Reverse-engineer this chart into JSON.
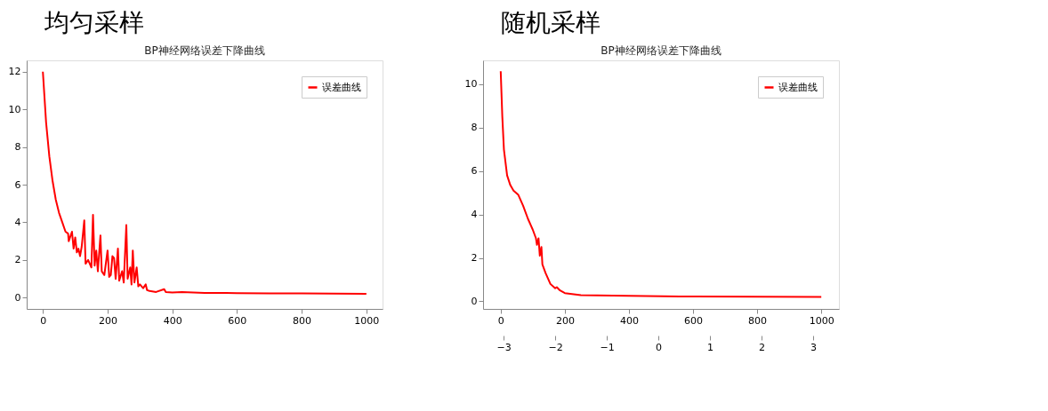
{
  "chart_data": [
    {
      "type": "line",
      "title": "BP神经网络误差下降曲线",
      "annotations": [
        "均匀采样"
      ],
      "xlim": [
        -50,
        1050
      ],
      "xticks": [
        0,
        200,
        400,
        600,
        800,
        1000
      ],
      "ylim": [
        -0.6,
        12.6
      ],
      "yticks": [
        0,
        2,
        4,
        6,
        8,
        10,
        12
      ],
      "grid": false,
      "legend": "top right",
      "marker": "none",
      "line_style": "solid",
      "x": [
        0,
        10,
        20,
        30,
        40,
        50,
        60,
        70,
        78,
        80,
        90,
        95,
        100,
        105,
        110,
        115,
        120,
        128,
        132,
        140,
        150,
        155,
        160,
        165,
        170,
        178,
        182,
        190,
        200,
        205,
        210,
        215,
        220,
        225,
        232,
        236,
        245,
        250,
        258,
        262,
        270,
        274,
        278,
        283,
        290,
        295,
        300,
        310,
        318,
        322,
        330,
        350,
        375,
        380,
        400,
        430,
        500,
        600,
        700,
        800,
        900,
        1000
      ],
      "series": [
        {
          "name": "误差曲线",
          "color": "#ff0000",
          "values": [
            12,
            9.3,
            7.5,
            6.2,
            5.2,
            4.5,
            4.0,
            3.5,
            3.4,
            3.0,
            3.5,
            2.6,
            3.2,
            2.4,
            2.6,
            2.2,
            2.7,
            4.1,
            1.8,
            2.0,
            1.6,
            4.4,
            1.7,
            2.5,
            1.4,
            3.3,
            1.4,
            1.2,
            2.5,
            1.1,
            1.2,
            2.2,
            2.1,
            1.0,
            2.6,
            0.9,
            1.4,
            0.8,
            3.85,
            1.0,
            1.6,
            0.7,
            2.5,
            0.8,
            1.6,
            0.6,
            0.7,
            0.5,
            0.7,
            0.4,
            0.35,
            0.3,
            0.45,
            0.3,
            0.27,
            0.3,
            0.25,
            0.24,
            0.23,
            0.22,
            0.21,
            0.2
          ]
        }
      ]
    },
    {
      "type": "line",
      "title": "BP神经网络误差下降曲线",
      "annotations": [
        "随机采样"
      ],
      "xlim": [
        -55,
        1055
      ],
      "xticks": [
        0,
        200,
        400,
        600,
        800,
        1000
      ],
      "ylim": [
        -0.35,
        11.1
      ],
      "yticks": [
        0,
        2,
        4,
        6,
        8,
        10
      ],
      "x2lim": [
        -3.4,
        3.5
      ],
      "x2ticks": [
        -3,
        -2,
        -1,
        0,
        1,
        2,
        3
      ],
      "grid": false,
      "legend": "top right",
      "marker": "none",
      "line_style": "solid",
      "x": [
        0,
        5,
        10,
        20,
        30,
        40,
        55,
        70,
        85,
        100,
        110,
        113,
        118,
        122,
        127,
        130,
        140,
        155,
        170,
        175,
        185,
        200,
        250,
        400,
        600,
        800,
        1000
      ],
      "series": [
        {
          "name": "误差曲线",
          "color": "#ff0000",
          "values": [
            10.6,
            8.5,
            7.0,
            5.8,
            5.35,
            5.1,
            4.9,
            4.4,
            3.8,
            3.3,
            2.9,
            2.6,
            2.9,
            2.1,
            2.5,
            1.7,
            1.3,
            0.8,
            0.6,
            0.65,
            0.5,
            0.38,
            0.28,
            0.25,
            0.22,
            0.21,
            0.2
          ]
        }
      ]
    }
  ]
}
